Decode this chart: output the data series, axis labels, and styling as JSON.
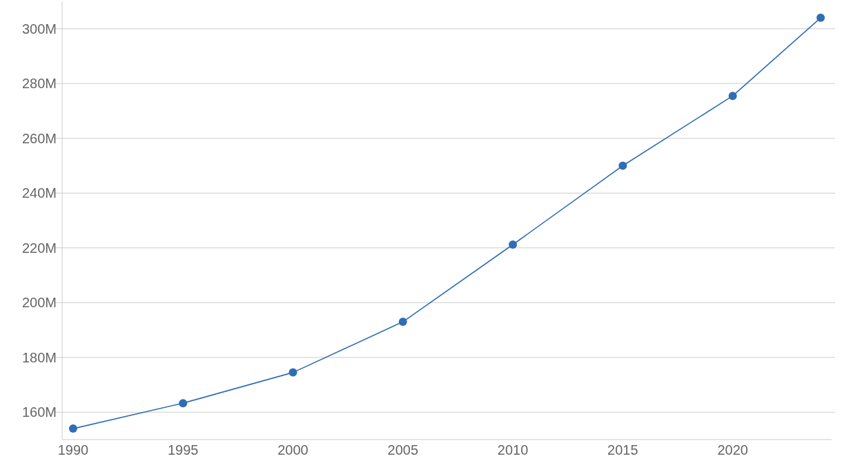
{
  "chart_data": {
    "type": "line",
    "x": [
      1990,
      1995,
      2000,
      2005,
      2010,
      2015,
      2020,
      2024
    ],
    "series": [
      {
        "color": "#2f6db5",
        "values": [
          154,
          163.3,
          174.5,
          193,
          221.2,
          250,
          275.5,
          304
        ]
      }
    ],
    "xlim": [
      1989.5,
      2024.5
    ],
    "xticks": [
      1990,
      1995,
      2000,
      2005,
      2010,
      2015,
      2020
    ],
    "ylim": [
      150,
      310
    ],
    "yticks": [
      {
        "value": 160,
        "label": "160M"
      },
      {
        "value": 180,
        "label": "180M"
      },
      {
        "value": 200,
        "label": "200M"
      },
      {
        "value": 220,
        "label": "220M"
      },
      {
        "value": 240,
        "label": "240M"
      },
      {
        "value": 260,
        "label": "260M"
      },
      {
        "value": 280,
        "label": "280M"
      },
      {
        "value": 300,
        "label": "300M"
      }
    ],
    "grid": "y",
    "marker": "circle",
    "line_style": "solid"
  }
}
